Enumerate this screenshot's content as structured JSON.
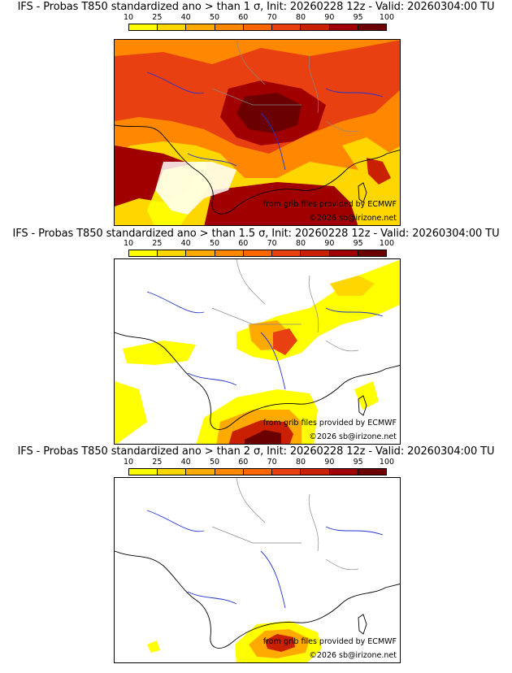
{
  "colorbar": {
    "ticks": [
      "10",
      "25",
      "40",
      "50",
      "60",
      "70",
      "80",
      "90",
      "95",
      "100"
    ],
    "colors": [
      "#ffff00",
      "#ffd700",
      "#ffaa00",
      "#ff8800",
      "#ff6600",
      "#e84010",
      "#c82000",
      "#a00000",
      "#6a0000"
    ]
  },
  "panels": [
    {
      "title": "IFS - Probas T850  standardized ano > than 1 σ, Init: 20260228 12z - Valid: 20260304:00 TU",
      "credit_source": "from grib files provided by ECMWF",
      "credit_copyright": "©2026 sb@irizone.net"
    },
    {
      "title": "IFS - Probas T850  standardized ano > than 1.5 σ, Init: 20260228 12z - Valid: 20260304:00 TU",
      "credit_source": "from grib files provided by ECMWF",
      "credit_copyright": "©2026 sb@irizone.net"
    },
    {
      "title": "IFS - Probas T850  standardized ano > than 2 σ, Init: 20260228 12z - Valid: 20260304:00 TU",
      "credit_source": "from grib files provided by ECMWF",
      "credit_copyright": "©2026 sb@irizone.net"
    }
  ]
}
